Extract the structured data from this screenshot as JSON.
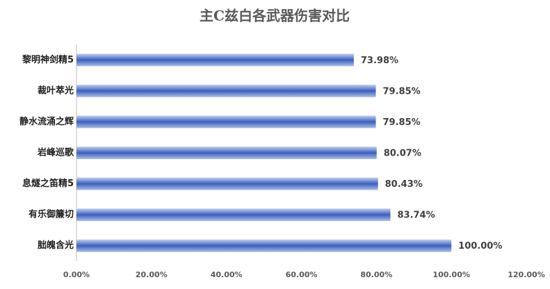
{
  "chart_data": {
    "type": "bar",
    "orientation": "horizontal",
    "title": "主C兹白各武器伤害对比",
    "categories": [
      "黎明神剑精5",
      "裁叶萃光",
      "静水流涌之辉",
      "岩峰巡歌",
      "息燧之笛精5",
      "有乐御簾切",
      "胐魄含光"
    ],
    "values": [
      73.98,
      79.85,
      79.85,
      80.07,
      80.43,
      83.74,
      100.0
    ],
    "value_labels": [
      "73.98%",
      "79.85%",
      "79.85%",
      "80.07%",
      "80.43%",
      "83.74%",
      "100.00%"
    ],
    "color": "#3a5fbf",
    "xlim": [
      0,
      120
    ],
    "xticks": [
      {
        "value": 0,
        "label": "0.00%"
      },
      {
        "value": 20,
        "label": "20.00%"
      },
      {
        "value": 40,
        "label": "40.00%"
      },
      {
        "value": 60,
        "label": "60.00%"
      },
      {
        "value": 80,
        "label": "80.00%"
      },
      {
        "value": 100,
        "label": "100.00%"
      },
      {
        "value": 120,
        "label": "120.00%"
      }
    ],
    "grid": false
  }
}
